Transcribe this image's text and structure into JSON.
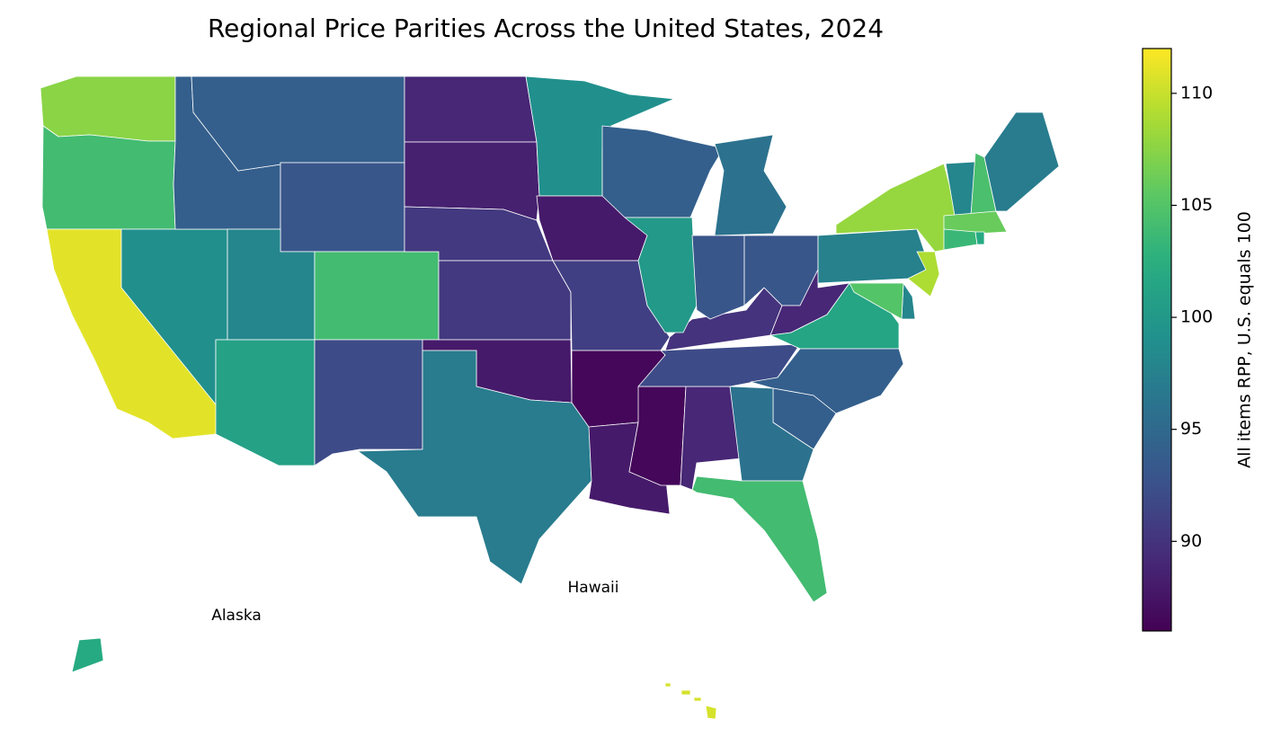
{
  "chart_data": {
    "type": "choropleth",
    "title": "Regional Price Parities Across the United States, 2024",
    "colormap": "viridis",
    "values": [
      107.5,
      104,
      111,
      99,
      94,
      94,
      93,
      98,
      104,
      101,
      92,
      89,
      88.5,
      90.5,
      90.5,
      88,
      97,
      99,
      88,
      91,
      86.5,
      88,
      86.5,
      89,
      92,
      90,
      94,
      100,
      96,
      93,
      93,
      89,
      101.5,
      94,
      94,
      96,
      104,
      97.5,
      108,
      109,
      98,
      105,
      98,
      104.5,
      97,
      106,
      103.5,
      102,
      102,
      110.5
    ],
    "annotations": [
      "Alaska",
      "Hawaii"
    ],
    "colorbar": {
      "label": "All items RPP, U.S. equals 100",
      "lim": [
        86,
        112
      ],
      "ticks": [
        90,
        95,
        100,
        105,
        110
      ]
    }
  }
}
